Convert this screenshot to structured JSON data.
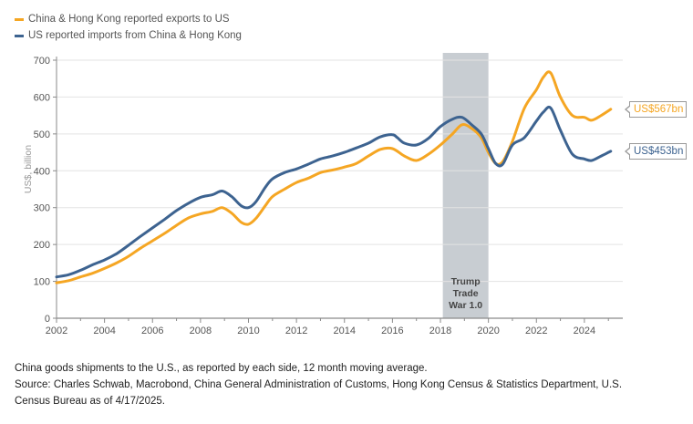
{
  "legend": {
    "exports_label": "China & Hong Kong reported exports to US",
    "imports_label": "US reported imports from China & Hong Kong"
  },
  "colors": {
    "exports": "#F5A623",
    "imports": "#3D6390",
    "shade": "#C8CDD2",
    "axis": "#8A8A8A"
  },
  "callouts": {
    "exports": "US$567bn",
    "imports": "US$453bn"
  },
  "shade_label_lines": [
    "Trump",
    "Trade",
    "War 1.0"
  ],
  "caption": {
    "line1": "China goods shipments to the U.S., as reported by each side, 12 month moving average.",
    "line2": "Source: Charles Schwab, Macrobond, China General Administration of Customs, Hong Kong Census & Statistics Department, U.S.",
    "line3": "Census Bureau as of 4/17/2025."
  },
  "chart_data": {
    "type": "line",
    "title": "",
    "xlabel": "",
    "ylabel": "US$, billion",
    "xlim": [
      2002,
      2025.6
    ],
    "ylim": [
      0,
      700
    ],
    "x_ticks": [
      "2002",
      "2004",
      "2006",
      "2008",
      "2010",
      "2012",
      "2014",
      "2016",
      "2018",
      "2020",
      "2022",
      "2024"
    ],
    "y_ticks": [
      "0",
      "100",
      "200",
      "300",
      "400",
      "500",
      "600",
      "700"
    ],
    "shaded_region": {
      "x": [
        2018.1,
        2020.0
      ],
      "label": "Trump Trade War 1.0"
    },
    "series": [
      {
        "name": "China & Hong Kong reported exports to US",
        "x": [
          2002,
          2002.5,
          2003,
          2003.5,
          2004,
          2004.5,
          2005,
          2005.5,
          2006,
          2006.5,
          2007,
          2007.5,
          2008,
          2008.5,
          2008.9,
          2009.3,
          2009.7,
          2010.0,
          2010.3,
          2010.7,
          2011,
          2011.5,
          2012,
          2012.5,
          2013,
          2013.5,
          2014,
          2014.5,
          2015,
          2015.5,
          2016,
          2016.5,
          2017,
          2017.5,
          2018,
          2018.5,
          2018.9,
          2019.3,
          2019.7,
          2020.0,
          2020.3,
          2020.6,
          2021,
          2021.5,
          2022,
          2022.3,
          2022.6,
          2023,
          2023.5,
          2024,
          2024.3,
          2024.7,
          2025.1
        ],
        "values": [
          96,
          102,
          112,
          122,
          135,
          150,
          168,
          190,
          210,
          230,
          252,
          272,
          283,
          290,
          300,
          285,
          260,
          255,
          270,
          305,
          330,
          350,
          368,
          380,
          395,
          402,
          410,
          420,
          440,
          458,
          460,
          440,
          428,
          445,
          470,
          500,
          525,
          515,
          490,
          450,
          420,
          425,
          480,
          570,
          620,
          655,
          665,
          600,
          550,
          545,
          537,
          550,
          567
        ]
      },
      {
        "name": "US reported imports from China & Hong Kong",
        "x": [
          2002,
          2002.5,
          2003,
          2003.5,
          2004,
          2004.5,
          2005,
          2005.5,
          2006,
          2006.5,
          2007,
          2007.5,
          2008,
          2008.5,
          2008.9,
          2009.3,
          2009.7,
          2010.0,
          2010.3,
          2010.7,
          2011,
          2011.5,
          2012,
          2012.5,
          2013,
          2013.5,
          2014,
          2014.5,
          2015,
          2015.5,
          2016,
          2016.2,
          2016.5,
          2017,
          2017.5,
          2018,
          2018.5,
          2018.9,
          2019.3,
          2019.7,
          2020.0,
          2020.3,
          2020.6,
          2021,
          2021.5,
          2022,
          2022.3,
          2022.6,
          2023,
          2023.5,
          2024,
          2024.3,
          2024.7,
          2025.1
        ],
        "values": [
          112,
          118,
          130,
          145,
          158,
          175,
          198,
          222,
          245,
          268,
          292,
          312,
          328,
          335,
          345,
          330,
          305,
          300,
          315,
          355,
          378,
          395,
          405,
          418,
          432,
          440,
          450,
          462,
          475,
          492,
          498,
          490,
          475,
          470,
          488,
          520,
          540,
          545,
          525,
          500,
          460,
          420,
          418,
          470,
          490,
          535,
          560,
          570,
          510,
          445,
          432,
          428,
          440,
          453
        ]
      }
    ]
  }
}
